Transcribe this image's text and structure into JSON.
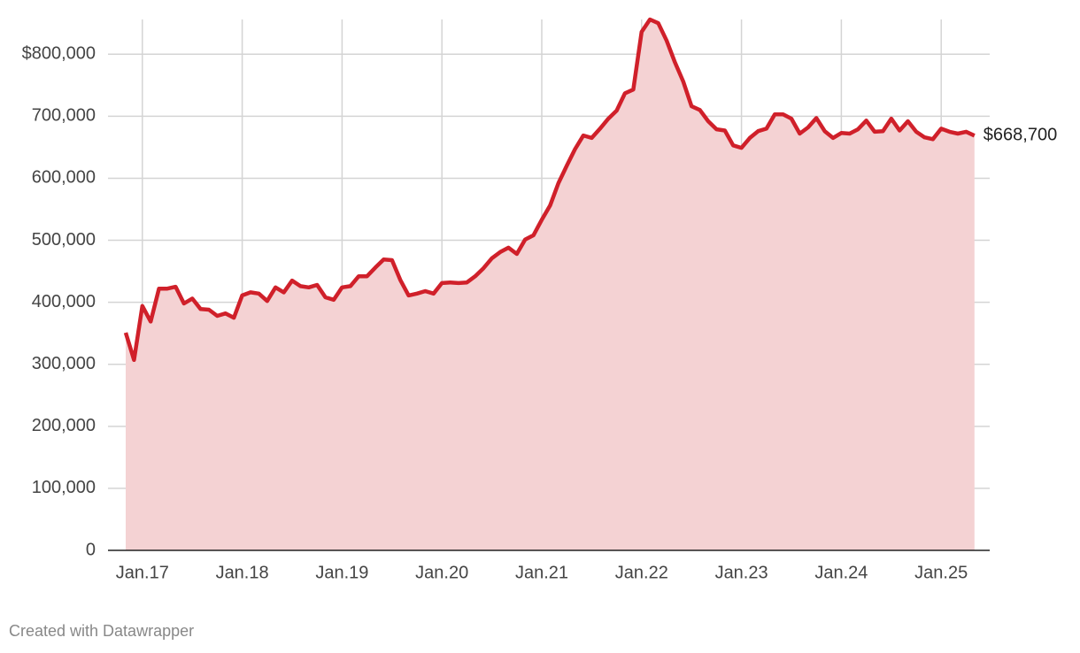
{
  "chart_data": {
    "type": "area",
    "source": "Created with Datawrapper",
    "x": [
      "2016-11",
      "2016-12",
      "2017-01",
      "2017-02",
      "2017-03",
      "2017-04",
      "2017-05",
      "2017-06",
      "2017-07",
      "2017-08",
      "2017-09",
      "2017-10",
      "2017-11",
      "2017-12",
      "2018-01",
      "2018-02",
      "2018-03",
      "2018-04",
      "2018-05",
      "2018-06",
      "2018-07",
      "2018-08",
      "2018-09",
      "2018-10",
      "2018-11",
      "2018-12",
      "2019-01",
      "2019-02",
      "2019-03",
      "2019-04",
      "2019-05",
      "2019-06",
      "2019-07",
      "2019-08",
      "2019-09",
      "2019-10",
      "2019-11",
      "2019-12",
      "2020-01",
      "2020-02",
      "2020-03",
      "2020-04",
      "2020-05",
      "2020-06",
      "2020-07",
      "2020-08",
      "2020-09",
      "2020-10",
      "2020-11",
      "2020-12",
      "2021-01",
      "2021-02",
      "2021-03",
      "2021-04",
      "2021-05",
      "2021-06",
      "2021-07",
      "2021-08",
      "2021-09",
      "2021-10",
      "2021-11",
      "2021-12",
      "2022-01",
      "2022-02",
      "2022-03",
      "2022-04",
      "2022-05",
      "2022-06",
      "2022-07",
      "2022-08",
      "2022-09",
      "2022-10",
      "2022-11",
      "2022-12",
      "2023-01",
      "2023-02",
      "2023-03",
      "2023-04",
      "2023-05",
      "2023-06",
      "2023-07",
      "2023-08",
      "2023-09",
      "2023-10",
      "2023-11",
      "2023-12",
      "2024-01",
      "2024-02",
      "2024-03",
      "2024-04",
      "2024-05",
      "2024-06",
      "2024-07",
      "2024-08",
      "2024-09",
      "2024-10",
      "2024-11",
      "2024-12",
      "2025-01",
      "2025-02",
      "2025-03",
      "2025-04",
      "2025-05"
    ],
    "values": [
      351000,
      307000,
      394000,
      369000,
      422000,
      422000,
      425000,
      398000,
      406000,
      389000,
      388000,
      378000,
      382000,
      375000,
      411000,
      416000,
      414000,
      402000,
      424000,
      416000,
      435000,
      426000,
      424000,
      428000,
      408000,
      404000,
      424000,
      426000,
      442000,
      442000,
      456000,
      469000,
      468000,
      436000,
      411000,
      414000,
      418000,
      414000,
      431000,
      432000,
      431000,
      432000,
      442000,
      455000,
      471000,
      481000,
      488000,
      478000,
      501000,
      508000,
      533000,
      556000,
      592000,
      620000,
      647000,
      669000,
      665000,
      680000,
      696000,
      709000,
      737000,
      743000,
      836000,
      856000,
      850000,
      822000,
      787000,
      756000,
      716000,
      710000,
      692000,
      679000,
      677000,
      653000,
      649000,
      665000,
      676000,
      680000,
      703000,
      703000,
      696000,
      672000,
      682000,
      697000,
      676000,
      665000,
      673000,
      672000,
      679000,
      693000,
      675000,
      676000,
      696000,
      677000,
      692000,
      675000,
      666000,
      663000,
      680000,
      675000,
      672000,
      675000,
      668700
    ],
    "color": "#d0202a",
    "fill_color": "#f4d2d3",
    "annotations": [
      {
        "text": "$668,700",
        "x": "2025-05",
        "y": 668700
      }
    ],
    "ylim": [
      0,
      856000
    ],
    "yticks": [
      0,
      {
        "value": 100000,
        "label": "100,000"
      },
      {
        "value": 200000,
        "label": "200,000"
      },
      {
        "value": 300000,
        "label": "300,000"
      },
      {
        "value": 400000,
        "label": "400,000"
      },
      {
        "value": 500000,
        "label": "500,000"
      },
      {
        "value": 600000,
        "label": "600,000"
      },
      {
        "value": 700000,
        "label": "700,000"
      },
      {
        "value": 800000,
        "label": "$800,000"
      }
    ],
    "xticks": [
      {
        "value": "2017-01",
        "label": "Jan.17"
      },
      {
        "value": "2018-01",
        "label": "Jan.18"
      },
      {
        "value": "2019-01",
        "label": "Jan.19"
      },
      {
        "value": "2020-01",
        "label": "Jan.20"
      },
      {
        "value": "2021-01",
        "label": "Jan.21"
      },
      {
        "value": "2022-01",
        "label": "Jan.22"
      },
      {
        "value": "2023-01",
        "label": "Jan.23"
      },
      {
        "value": "2024-01",
        "label": "Jan.24"
      },
      {
        "value": "2025-01",
        "label": "Jan.25"
      }
    ],
    "grid": true
  }
}
